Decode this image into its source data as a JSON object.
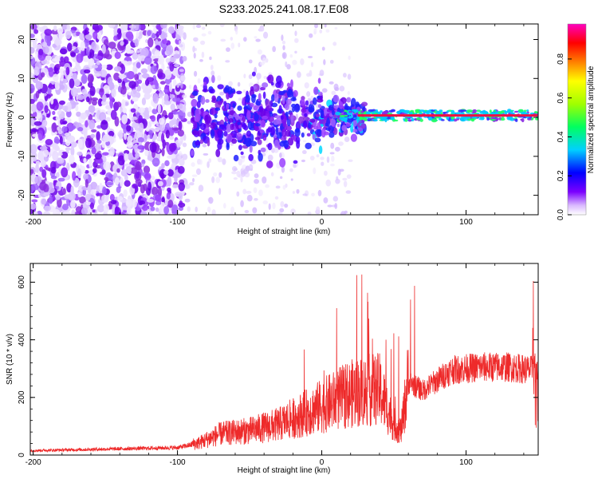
{
  "figure_title": "S233.2025.241.08.17.E08",
  "chart_data": [
    {
      "type": "heatmap",
      "title": "S233.2025.241.08.17.E08",
      "xlabel": "Height of straight line (km)",
      "ylabel": "Frequency (Hz)",
      "xlim": [
        -202,
        150
      ],
      "ylim": [
        -25,
        24
      ],
      "xticks": [
        -200,
        -100,
        0,
        100
      ],
      "yticks": [
        -20,
        -10,
        0,
        10,
        20
      ],
      "xtick_labels": [
        "-200",
        "-100",
        "0",
        "100"
      ],
      "ytick_labels": [
        "-20",
        "-10",
        "0",
        "10",
        "20"
      ],
      "colorbar": {
        "label": "Normalized spectral amplitude",
        "range": [
          0.0,
          0.98
        ],
        "ticks": [
          0.0,
          0.2,
          0.4,
          0.6,
          0.8
        ],
        "tick_labels": [
          "0.0",
          "0.2",
          "0.4",
          "0.6",
          "0.8"
        ],
        "colors": [
          "#ffffff",
          "#7b00ff",
          "#0000ff",
          "#00e0ff",
          "#00ff40",
          "#c0ff00",
          "#ffff00",
          "#ff8000",
          "#ff0000",
          "#ff00c0"
        ]
      },
      "features": {
        "carrier_frequency_hz": 0.5,
        "carrier_start_km": 25,
        "carrier_end_km": 150,
        "noise_cutoff_km": -90,
        "transition_start_km": -90,
        "transition_end_km": 20
      }
    },
    {
      "type": "line",
      "xlabel": "Height of straight line (km)",
      "ylabel": "SNR (10 * v/v)",
      "xlim": [
        -202,
        150
      ],
      "ylim": [
        0,
        665
      ],
      "xticks": [
        -200,
        -100,
        0,
        100
      ],
      "yticks": [
        0,
        200,
        400,
        600
      ],
      "xtick_labels": [
        "-200",
        "-100",
        "0",
        "100"
      ],
      "ytick_labels": [
        "0",
        "200",
        "400",
        "600"
      ],
      "series": [
        {
          "name": "SNR",
          "color": "#ee2a2a",
          "profile_x": [
            -202,
            -150,
            -100,
            -85,
            -70,
            -50,
            -30,
            -15,
            0,
            20,
            30,
            40,
            50,
            55,
            60,
            70,
            90,
            110,
            130,
            145,
            150
          ],
          "profile_y": [
            15,
            20,
            25,
            40,
            70,
            80,
            100,
            130,
            160,
            200,
            210,
            215,
            100,
            80,
            250,
            220,
            290,
            300,
            300,
            290,
            300
          ]
        }
      ]
    }
  ]
}
